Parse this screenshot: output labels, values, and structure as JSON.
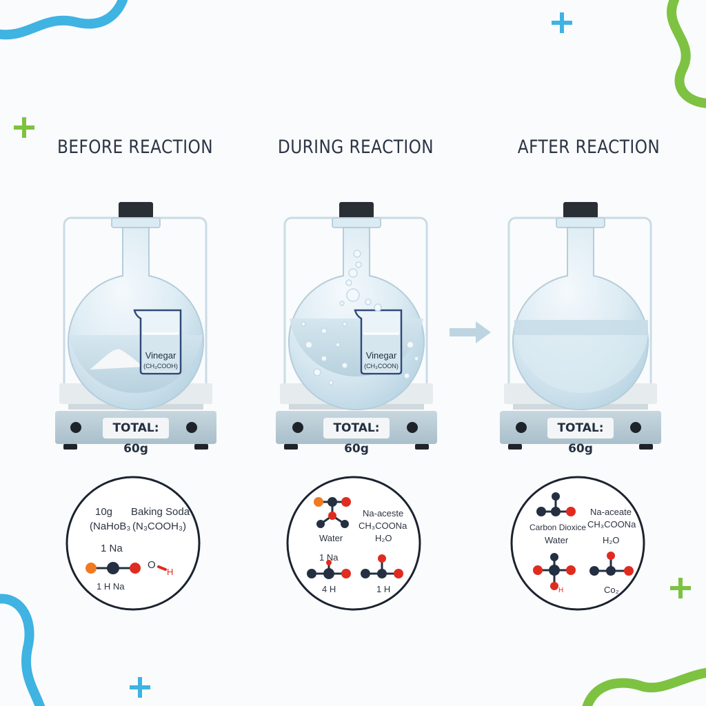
{
  "stages": [
    {
      "title": "BEFORE REACTION",
      "scale_total": "TOTAL: 60g",
      "beaker_label": "Vinegar",
      "beaker_formula": "(CH₃COOH)",
      "molecule_labels": {
        "mass": "10g",
        "name": "Baking Soda",
        "formula_a": "(NaHoB₃",
        "formula_b": "(N₃COOH₃)",
        "atom_top": "1 Na",
        "atom_bottom": "1 H Na",
        "oh_o": "O",
        "oh_h": "H"
      }
    },
    {
      "title": "DURING REACTION",
      "scale_total": "TOTAL: 60g",
      "beaker_label": "Vinegar",
      "beaker_formula": "(CH₃COON)",
      "molecule_labels": {
        "name": "Na-aceste",
        "formula": "CH₃COONa",
        "water": "Water",
        "water_formula": "H₂O",
        "na": "1 Na",
        "h4": "4 H",
        "h1": "1 H"
      }
    },
    {
      "title": "AFTER REACTION",
      "scale_total": "TOTAL: 60g",
      "molecule_labels": {
        "name": "Na-aceate",
        "formula": "CH₃COONa",
        "co2": "Carbon Dioxice",
        "water": "Water",
        "water_formula": "H₂O",
        "h": "H",
        "co2_formula": "Co₂"
      }
    }
  ],
  "colors": {
    "blue_accent": "#3fb3e2",
    "green_accent": "#7dc241",
    "glass": "#cfe3ee",
    "liquid": "#b9d3de",
    "scale": "#b6c9d3",
    "stopper": "#2a2f36",
    "atom_dark": "#243041",
    "atom_red": "#e02b20",
    "atom_orange": "#f07a22"
  }
}
